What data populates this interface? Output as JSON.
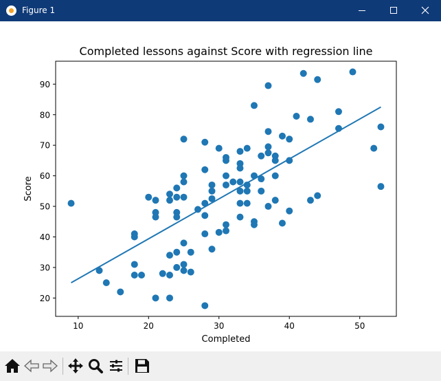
{
  "window": {
    "title": "Figure 1"
  },
  "toolbar": {
    "buttons": [
      {
        "name": "home",
        "icon": "home-icon"
      },
      {
        "name": "back",
        "icon": "back-arrow-icon"
      },
      {
        "name": "forward",
        "icon": "forward-arrow-icon"
      },
      {
        "name": "pan",
        "icon": "move-icon"
      },
      {
        "name": "zoom",
        "icon": "magnifier-icon"
      },
      {
        "name": "configure-subplots",
        "icon": "sliders-icon"
      },
      {
        "name": "save",
        "icon": "floppy-disk-icon"
      }
    ]
  },
  "colors": {
    "titlebar": "#0f3a78",
    "points": "#1f77b4",
    "line": "#1f77b4"
  },
  "chart_data": {
    "type": "scatter",
    "title": "Completed lessons against Score with regression line",
    "xlabel": "Completed",
    "ylabel": "Score",
    "xlim": [
      6.8,
      55.2
    ],
    "ylim": [
      14.0,
      97.5
    ],
    "xticks": [
      10,
      20,
      30,
      40,
      50
    ],
    "yticks": [
      20,
      30,
      40,
      50,
      60,
      70,
      80,
      90
    ],
    "grid": false,
    "legend": "none",
    "points": [
      [
        9,
        51
      ],
      [
        13,
        29
      ],
      [
        14,
        25
      ],
      [
        16,
        22
      ],
      [
        18,
        41
      ],
      [
        18,
        40
      ],
      [
        18,
        31
      ],
      [
        18,
        27.5
      ],
      [
        19,
        27.5
      ],
      [
        20,
        53
      ],
      [
        21,
        52
      ],
      [
        21,
        48
      ],
      [
        21,
        46.5
      ],
      [
        21,
        20
      ],
      [
        22,
        28
      ],
      [
        23,
        54
      ],
      [
        23,
        52
      ],
      [
        23,
        34
      ],
      [
        23,
        27.5
      ],
      [
        23,
        20
      ],
      [
        24,
        56
      ],
      [
        24,
        53
      ],
      [
        24,
        48
      ],
      [
        24,
        46.5
      ],
      [
        24,
        35
      ],
      [
        24,
        30
      ],
      [
        25,
        72
      ],
      [
        25,
        60
      ],
      [
        25,
        58
      ],
      [
        25,
        53
      ],
      [
        25,
        38
      ],
      [
        25,
        31
      ],
      [
        25,
        29
      ],
      [
        26,
        35
      ],
      [
        26,
        28.5
      ],
      [
        27,
        49
      ],
      [
        28,
        71
      ],
      [
        28,
        62
      ],
      [
        28,
        51
      ],
      [
        28,
        47
      ],
      [
        28,
        41
      ],
      [
        28,
        17.5
      ],
      [
        29,
        57
      ],
      [
        29,
        55
      ],
      [
        29,
        52.5
      ],
      [
        29,
        36
      ],
      [
        30,
        69
      ],
      [
        30,
        41.5
      ],
      [
        31,
        66
      ],
      [
        31,
        65
      ],
      [
        31,
        60
      ],
      [
        31,
        57
      ],
      [
        31,
        44
      ],
      [
        31,
        42
      ],
      [
        32,
        58
      ],
      [
        33,
        68
      ],
      [
        33,
        64
      ],
      [
        33,
        62.5
      ],
      [
        33,
        58
      ],
      [
        33,
        55
      ],
      [
        33,
        51
      ],
      [
        33,
        46.5
      ],
      [
        34,
        69
      ],
      [
        34,
        57
      ],
      [
        34,
        55
      ],
      [
        34,
        51
      ],
      [
        35,
        83
      ],
      [
        35,
        60
      ],
      [
        35,
        45
      ],
      [
        35,
        44
      ],
      [
        36,
        66.5
      ],
      [
        36,
        59
      ],
      [
        36,
        55
      ],
      [
        37,
        89.5
      ],
      [
        37,
        74.5
      ],
      [
        37,
        69.5
      ],
      [
        37,
        67.5
      ],
      [
        37,
        50
      ],
      [
        38,
        66.5
      ],
      [
        38,
        65
      ],
      [
        38,
        60
      ],
      [
        38,
        52
      ],
      [
        39,
        73
      ],
      [
        39,
        44.5
      ],
      [
        40,
        72
      ],
      [
        40,
        65
      ],
      [
        40,
        48.5
      ],
      [
        41,
        79.5
      ],
      [
        42,
        93.5
      ],
      [
        43,
        78.5
      ],
      [
        43,
        52
      ],
      [
        44,
        91.5
      ],
      [
        44,
        53.5
      ],
      [
        47,
        81
      ],
      [
        47,
        75.5
      ],
      [
        49,
        94
      ],
      [
        52,
        69
      ],
      [
        53,
        76
      ],
      [
        53,
        56.5
      ]
    ],
    "regression_line": {
      "x": [
        9,
        53
      ],
      "y": [
        25,
        82.5
      ]
    }
  }
}
